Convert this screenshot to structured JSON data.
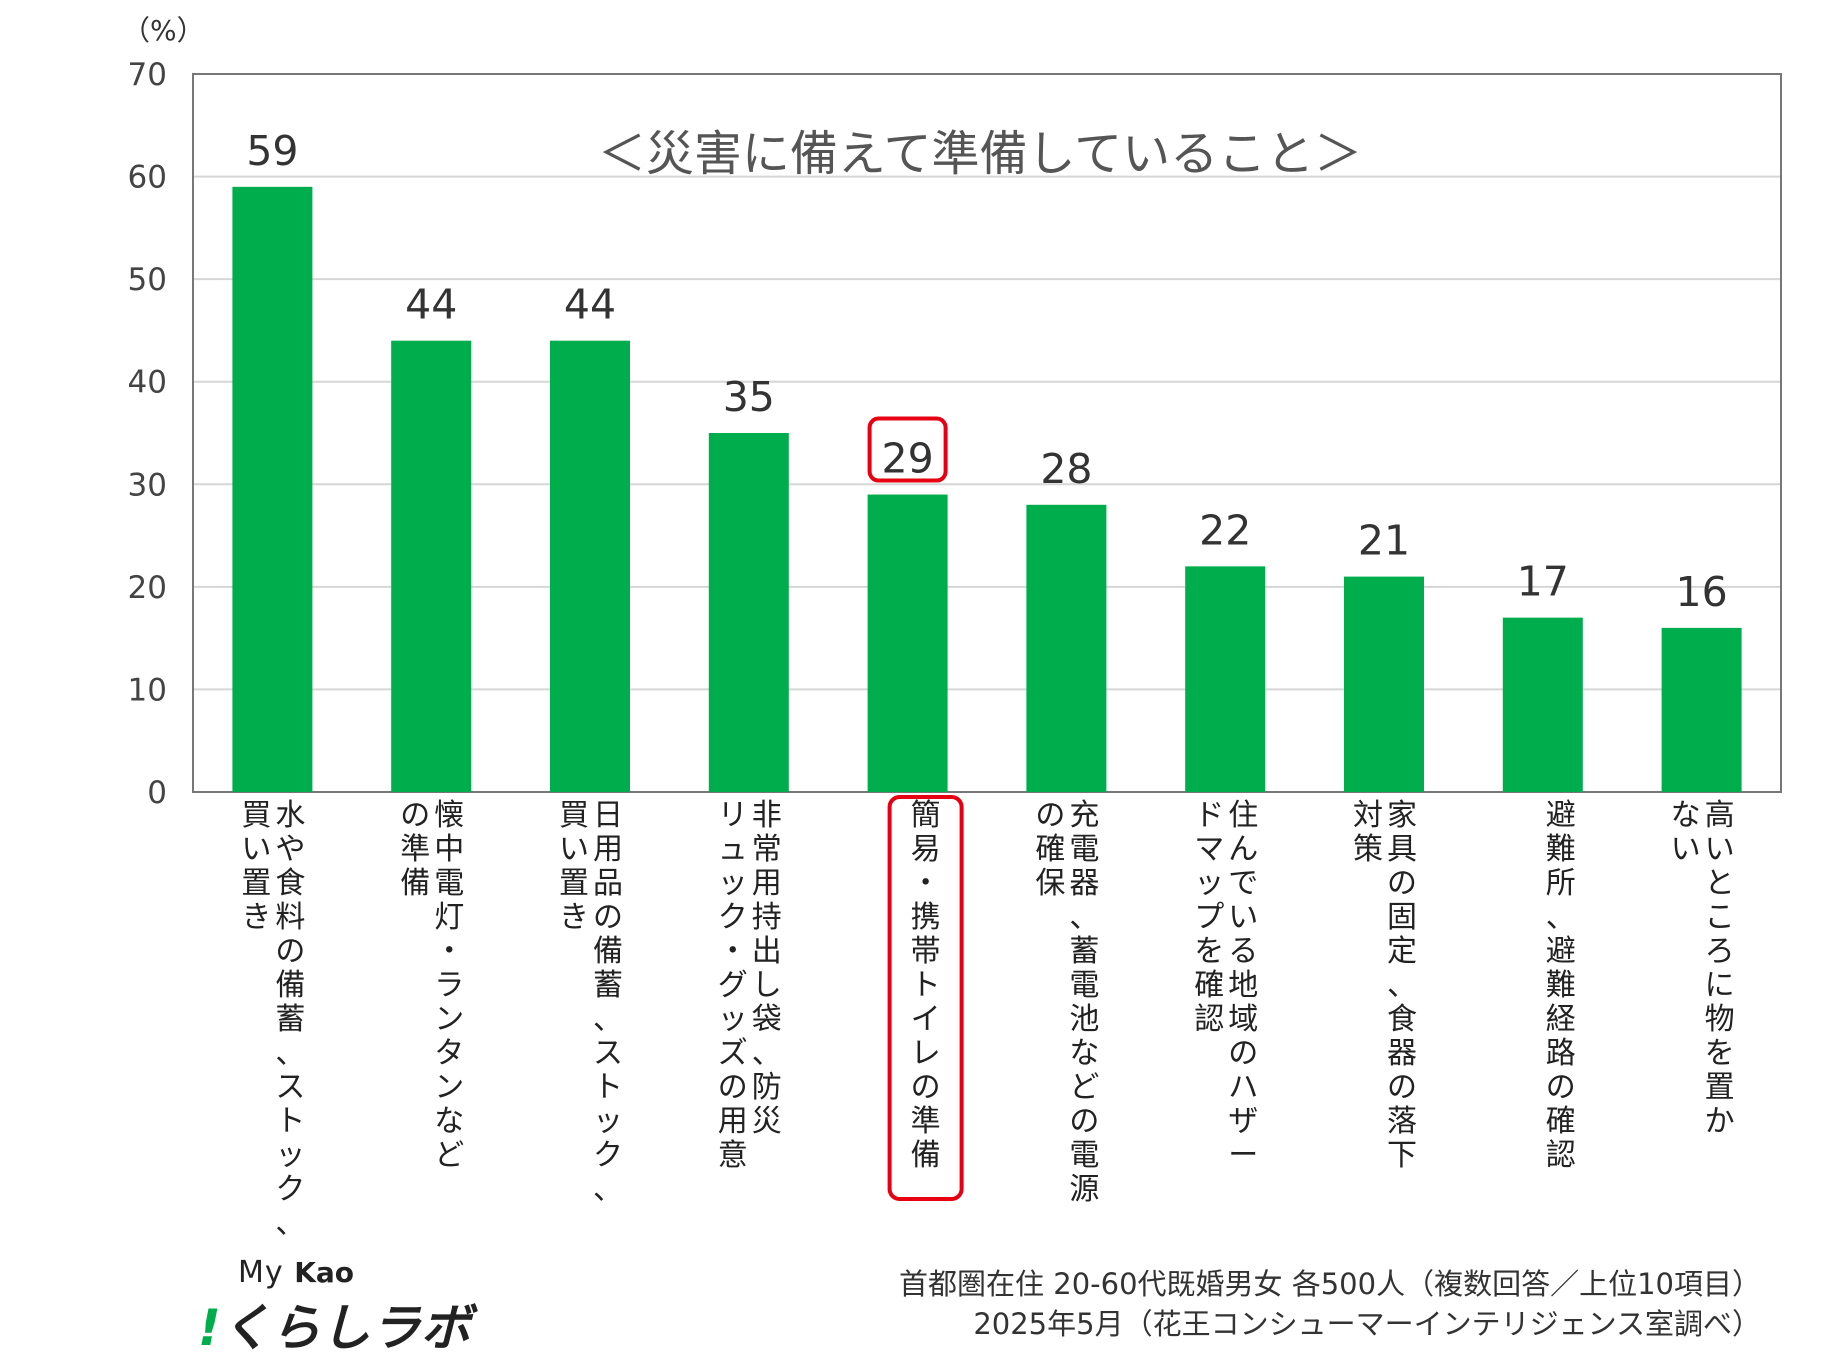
{
  "chart_data": {
    "type": "bar",
    "title": "＜災害に備えて準備していること＞",
    "ylabel": "（%）",
    "ylim": [
      0,
      70
    ],
    "yticks": [
      "70",
      "60",
      "50",
      "40",
      "30",
      "20",
      "10",
      "0"
    ],
    "grid": true,
    "bar_color": "#00ad4c",
    "highlight_color": "#e60012",
    "highlight_index": 4,
    "categories": [
      [
        "水や食料の備蓄、ストック、",
        "買い置き"
      ],
      [
        "懐中電灯・ランタンなど",
        "の準備"
      ],
      [
        "日用品の備蓄、ストック、",
        "買い置き"
      ],
      [
        "非常用持出し袋、防災",
        "リュック・グッズの用意"
      ],
      [
        "簡易・携帯トイレの準備"
      ],
      [
        "充電器、蓄電池などの電源",
        "の確保"
      ],
      [
        "住んでいる地域のハザー",
        "ドマップを確認"
      ],
      [
        "家具の固定、食器の落下",
        "対策"
      ],
      [
        "避難所、避難経路の確認"
      ],
      [
        "高いところに物を置か",
        "ない"
      ]
    ],
    "values": [
      59,
      44,
      44,
      35,
      29,
      28,
      22,
      21,
      17,
      16
    ]
  },
  "logo": {
    "line1": "My",
    "line1_brand": "Kao",
    "line2_mark": "!",
    "line2": "くらしラボ"
  },
  "footnote": {
    "line1": "首都圏在住 20-60代既婚男女 各500人（複数回答／上位10項目）",
    "line2": "2025年5月（花王コンシューマーインテリジェンス室調べ）"
  }
}
